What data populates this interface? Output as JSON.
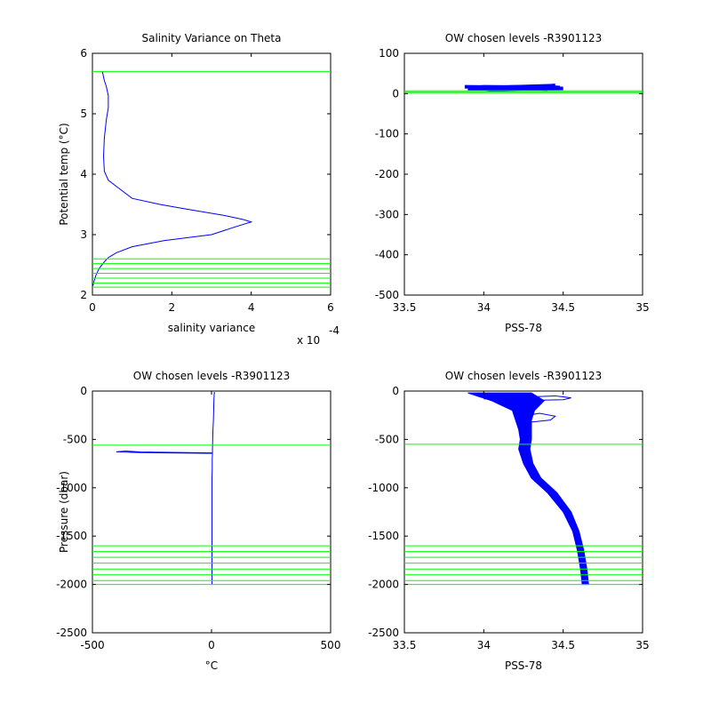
{
  "figure_colors": {
    "profile": "#0000ff",
    "levels": "#00ff00",
    "axes": "#000000",
    "background": "#ffffff"
  },
  "chart_data": [
    {
      "id": "p1",
      "type": "line",
      "title": "Salinity Variance on Theta",
      "xlabel": "salinity variance",
      "ylabel": "Potential temp (°C)",
      "xlim": [
        0,
        0.0006
      ],
      "ylim": [
        2,
        6
      ],
      "xticks": [
        0,
        0.0002,
        0.0004,
        0.0006
      ],
      "xtick_labels": [
        "0",
        "2",
        "4",
        "6"
      ],
      "yticks": [
        2,
        3,
        4,
        5,
        6
      ],
      "ytick_labels": [
        "2",
        "3",
        "4",
        "5",
        "6"
      ],
      "x_multiplier_base": "x 10",
      "x_multiplier_exp": "-4",
      "hlines": [
        5.7,
        2.6,
        2.52,
        2.44,
        2.36,
        2.28,
        2.2,
        2.13
      ],
      "series": [
        {
          "x": [
            2.5e-05,
            3e-05,
            3.5e-05,
            4e-05,
            4e-05,
            3.5e-05,
            3e-05,
            2.8e-05,
            3e-05,
            4e-05,
            6e-05,
            0.0001,
            0.00017,
            0.00023,
            0.00033,
            0.00038,
            0.0004,
            0.00037,
            0.0003,
            0.00018,
            0.0001,
            6e-05,
            4e-05,
            3e-05,
            1.8e-05,
            1e-05,
            5e-06,
            1e-06
          ],
          "y": [
            5.7,
            5.55,
            5.45,
            5.3,
            5.1,
            4.9,
            4.6,
            4.3,
            4.05,
            3.9,
            3.8,
            3.6,
            3.5,
            3.43,
            3.32,
            3.25,
            3.21,
            3.15,
            3.0,
            2.9,
            2.8,
            2.7,
            2.62,
            2.55,
            2.45,
            2.35,
            2.25,
            2.15
          ]
        }
      ]
    },
    {
      "id": "p2",
      "type": "line",
      "title": "OW chosen levels -R3901123",
      "xlabel": "PSS-78",
      "ylabel": "",
      "xlim": [
        33.5,
        35
      ],
      "ylim": [
        -500,
        100
      ],
      "xticks": [
        33.5,
        34,
        34.5,
        35
      ],
      "xtick_labels": [
        "33.5",
        "34",
        "34.5",
        "35"
      ],
      "yticks": [
        -500,
        -400,
        -300,
        -200,
        -100,
        0,
        100
      ],
      "ytick_labels": [
        "-500",
        "-400",
        "-300",
        "-200",
        "-100",
        "0",
        "100"
      ],
      "hlines": [
        7,
        4,
        1
      ],
      "series": [
        {
          "x": [
            33.88,
            34.1,
            34.3,
            34.45,
            34.2,
            33.9,
            34.15,
            34.5,
            34.05,
            33.9
          ],
          "y": [
            17,
            16,
            18,
            20,
            14,
            13,
            12,
            13,
            9,
            15
          ]
        },
        {
          "x": [
            33.9,
            34.2,
            34.4,
            34.3,
            34.0,
            33.92,
            34.35,
            34.48,
            34.1,
            33.95
          ],
          "y": [
            11,
            13,
            10,
            16,
            17,
            14,
            18,
            15,
            10,
            12
          ]
        }
      ]
    },
    {
      "id": "p3",
      "type": "line",
      "title": "OW chosen levels -R3901123",
      "xlabel": "°C",
      "ylabel": "Pressure (dbar)",
      "xlim": [
        -500,
        500
      ],
      "ylim": [
        -2500,
        0
      ],
      "xticks": [
        -500,
        0,
        500
      ],
      "xtick_labels": [
        "-500",
        "0",
        "500"
      ],
      "yticks": [
        -2500,
        -2000,
        -1500,
        -1000,
        -500,
        0
      ],
      "ytick_labels": [
        "-2500",
        "-2000",
        "-1500",
        "-1000",
        "-500",
        "0"
      ],
      "hlines": [
        -560,
        -1600,
        -1660,
        -1720,
        -1780,
        -1840,
        -1900,
        -1960,
        -2000
      ],
      "series": [
        {
          "x": [
            12,
            11,
            10,
            9,
            8,
            6,
            5,
            4,
            4,
            3,
            3,
            2,
            2,
            2,
            2,
            2,
            2,
            2,
            2
          ],
          "y": [
            -10,
            -50,
            -100,
            -200,
            -300,
            -400,
            -500,
            -600,
            -640,
            -700,
            -800,
            -900,
            -1000,
            -1200,
            -1400,
            -1600,
            -1800,
            -1950,
            -2000
          ]
        },
        {
          "x": [
            3,
            -300,
            -360,
            -400,
            -300,
            3
          ],
          "y": [
            -640,
            -630,
            -620,
            -628,
            -636,
            -645
          ]
        }
      ]
    },
    {
      "id": "p4",
      "type": "line",
      "title": "OW chosen levels -R3901123",
      "xlabel": "PSS-78",
      "ylabel": "",
      "xlim": [
        33.5,
        35
      ],
      "ylim": [
        -2500,
        0
      ],
      "xticks": [
        33.5,
        34,
        34.5,
        35
      ],
      "xtick_labels": [
        "33.5",
        "34",
        "34.5",
        "35"
      ],
      "yticks": [
        -2500,
        -2000,
        -1500,
        -1000,
        -500,
        0
      ],
      "ytick_labels": [
        "-2500",
        "-2000",
        "-1500",
        "-1000",
        "-500",
        "0"
      ],
      "hlines": [
        -550,
        -1600,
        -1660,
        -1720,
        -1780,
        -1840,
        -1900,
        -1960,
        -2000
      ],
      "series": [
        {
          "x": [
            34.1,
            34.2,
            34.23,
            34.22,
            34.25,
            34.26,
            34.25,
            34.27,
            34.32,
            34.42,
            34.52,
            34.58,
            34.61,
            34.63,
            34.64
          ],
          "y": [
            -50,
            -150,
            -250,
            -350,
            -450,
            -550,
            -650,
            -800,
            -900,
            -1050,
            -1250,
            -1450,
            -1650,
            -1850,
            -2000
          ]
        },
        {
          "x": [
            34.25,
            34.35,
            34.45,
            34.42,
            34.3,
            34.26
          ],
          "y": [
            -260,
            -230,
            -260,
            -300,
            -320,
            -290
          ]
        },
        {
          "x": [
            33.95,
            34.1,
            34.3,
            34.45,
            34.55,
            34.5,
            34.2,
            34.0
          ],
          "y": [
            -40,
            -30,
            -60,
            -50,
            -70,
            -90,
            -100,
            -80
          ]
        }
      ],
      "band": {
        "x_left": [
          33.9,
          34.05,
          34.18,
          34.2,
          34.22,
          34.23,
          34.22,
          34.25,
          34.3,
          34.4,
          34.5,
          34.56,
          34.59,
          34.61,
          34.62
        ],
        "x_right": [
          34.3,
          34.38,
          34.32,
          34.3,
          34.3,
          34.3,
          34.29,
          34.31,
          34.36,
          34.46,
          34.55,
          34.6,
          34.63,
          34.65,
          34.66
        ],
        "y": [
          -20,
          -100,
          -200,
          -300,
          -400,
          -500,
          -600,
          -750,
          -900,
          -1050,
          -1250,
          -1450,
          -1650,
          -1850,
          -2000
        ]
      }
    }
  ]
}
